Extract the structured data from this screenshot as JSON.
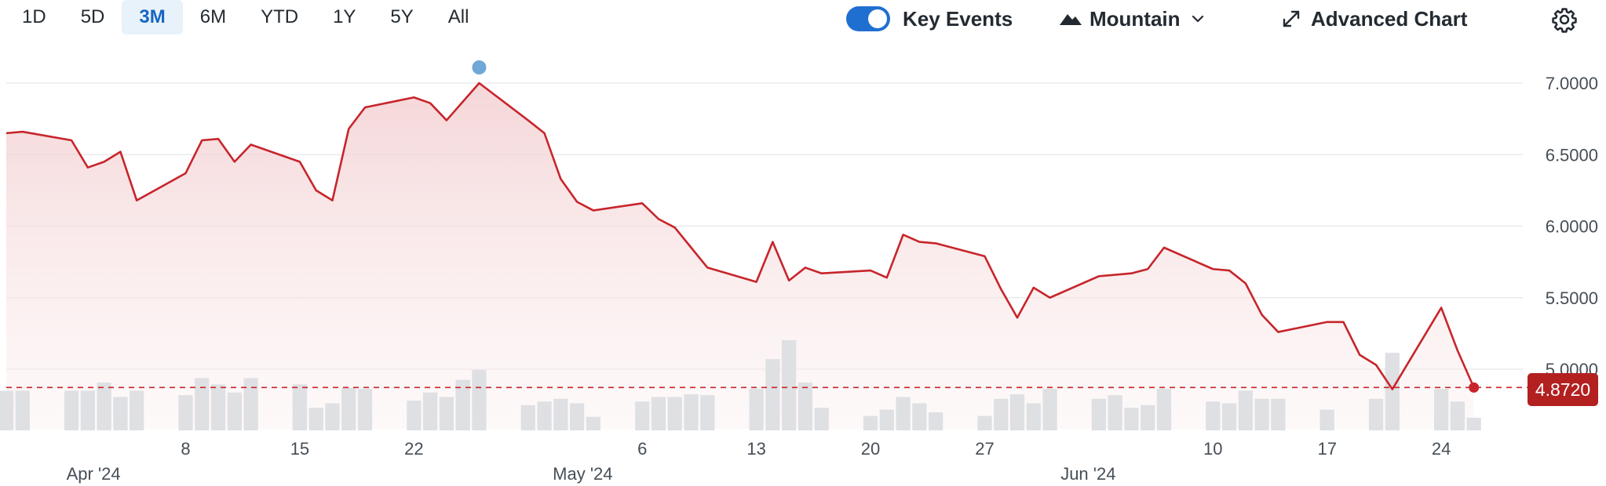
{
  "toolbar": {
    "ranges": [
      {
        "label": "1D",
        "active": false
      },
      {
        "label": "5D",
        "active": false
      },
      {
        "label": "3M",
        "active": true
      },
      {
        "label": "6M",
        "active": false
      },
      {
        "label": "YTD",
        "active": false
      },
      {
        "label": "1Y",
        "active": false
      },
      {
        "label": "5Y",
        "active": false
      },
      {
        "label": "All",
        "active": false
      }
    ],
    "key_events_label": "Key Events",
    "key_events_on": true,
    "chart_type_label": "Mountain",
    "advanced_chart_label": "Advanced Chart",
    "icons": {
      "chart_type": "mountain-icon",
      "dropdown": "chevron-down-icon",
      "advanced": "expand-arrows-icon",
      "settings": "gear-icon"
    }
  },
  "current_price_label": "4.8720",
  "colors": {
    "line": "#c7252b",
    "fill": "#f5d9da",
    "volume": "#dfe0e3",
    "event_dot": "#6ea7d8",
    "price_tag": "#b22020",
    "active_tab_bg": "#e8f2fb",
    "active_tab_text": "#1766c2",
    "toggle": "#1f6fd1"
  },
  "chart_data": {
    "type": "area",
    "title": "",
    "xlabel": "",
    "ylabel": "",
    "ylim": [
      4.6,
      7.2
    ],
    "yticks": [
      5.0,
      5.5,
      6.0,
      6.5,
      7.0
    ],
    "ytick_labels": [
      "5.0000",
      "5.5000",
      "6.0000",
      "6.5000",
      "7.0000"
    ],
    "grid": true,
    "x_tick_labels": [
      {
        "date": "2024-04-08",
        "label": "8"
      },
      {
        "date": "2024-04-15",
        "label": "15"
      },
      {
        "date": "2024-04-22",
        "label": "22"
      },
      {
        "date": "2024-05-06",
        "label": "6"
      },
      {
        "date": "2024-05-13",
        "label": "13"
      },
      {
        "date": "2024-05-20",
        "label": "20"
      },
      {
        "date": "2024-05-27",
        "label": "27"
      },
      {
        "date": "2024-06-10",
        "label": "10"
      },
      {
        "date": "2024-06-17",
        "label": "17"
      },
      {
        "date": "2024-06-24",
        "label": "24"
      }
    ],
    "month_labels": [
      {
        "date": "2024-04-01",
        "label": "Apr '24"
      },
      {
        "date": "2024-05-01",
        "label": "May '24"
      },
      {
        "date": "2024-06-01",
        "label": "Jun '24"
      }
    ],
    "x_range": [
      "2024-03-28",
      "2024-06-29"
    ],
    "last_value": 4.872,
    "key_event_date": "2024-04-26",
    "price": [
      [
        "2024-03-28",
        6.65
      ],
      [
        "2024-03-29",
        6.66
      ],
      [
        "2024-04-01",
        6.6
      ],
      [
        "2024-04-02",
        6.41
      ],
      [
        "2024-04-03",
        6.45
      ],
      [
        "2024-04-04",
        6.52
      ],
      [
        "2024-04-05",
        6.18
      ],
      [
        "2024-04-08",
        6.37
      ],
      [
        "2024-04-09",
        6.6
      ],
      [
        "2024-04-10",
        6.61
      ],
      [
        "2024-04-11",
        6.45
      ],
      [
        "2024-04-12",
        6.57
      ],
      [
        "2024-04-15",
        6.45
      ],
      [
        "2024-04-16",
        6.25
      ],
      [
        "2024-04-17",
        6.18
      ],
      [
        "2024-04-18",
        6.68
      ],
      [
        "2024-04-19",
        6.83
      ],
      [
        "2024-04-22",
        6.9
      ],
      [
        "2024-04-23",
        6.86
      ],
      [
        "2024-04-24",
        6.74
      ],
      [
        "2024-04-26",
        7.0
      ],
      [
        "2024-04-29",
        6.74
      ],
      [
        "2024-04-30",
        6.65
      ],
      [
        "2024-05-01",
        6.33
      ],
      [
        "2024-05-02",
        6.17
      ],
      [
        "2024-05-03",
        6.11
      ],
      [
        "2024-05-06",
        6.16
      ],
      [
        "2024-05-07",
        6.05
      ],
      [
        "2024-05-08",
        5.99
      ],
      [
        "2024-05-09",
        5.85
      ],
      [
        "2024-05-10",
        5.71
      ],
      [
        "2024-05-13",
        5.61
      ],
      [
        "2024-05-14",
        5.89
      ],
      [
        "2024-05-15",
        5.62
      ],
      [
        "2024-05-16",
        5.71
      ],
      [
        "2024-05-17",
        5.67
      ],
      [
        "2024-05-20",
        5.69
      ],
      [
        "2024-05-21",
        5.64
      ],
      [
        "2024-05-22",
        5.94
      ],
      [
        "2024-05-23",
        5.89
      ],
      [
        "2024-05-24",
        5.88
      ],
      [
        "2024-05-27",
        5.79
      ],
      [
        "2024-05-28",
        5.56
      ],
      [
        "2024-05-29",
        5.36
      ],
      [
        "2024-05-30",
        5.57
      ],
      [
        "2024-05-31",
        5.5
      ],
      [
        "2024-06-03",
        5.65
      ],
      [
        "2024-06-04",
        5.66
      ],
      [
        "2024-06-05",
        5.67
      ],
      [
        "2024-06-06",
        5.7
      ],
      [
        "2024-06-07",
        5.85
      ],
      [
        "2024-06-10",
        5.7
      ],
      [
        "2024-06-11",
        5.69
      ],
      [
        "2024-06-12",
        5.6
      ],
      [
        "2024-06-13",
        5.38
      ],
      [
        "2024-06-14",
        5.26
      ],
      [
        "2024-06-17",
        5.33
      ],
      [
        "2024-06-18",
        5.33
      ],
      [
        "2024-06-19",
        5.1
      ],
      [
        "2024-06-20",
        5.03
      ],
      [
        "2024-06-21",
        4.86
      ],
      [
        "2024-06-24",
        5.43
      ],
      [
        "2024-06-25",
        5.13
      ],
      [
        "2024-06-26",
        4.872
      ]
    ],
    "volume_relative": [
      [
        "2024-03-28",
        0.44
      ],
      [
        "2024-03-29",
        0.44
      ],
      [
        "2024-04-01",
        0.44
      ],
      [
        "2024-04-02",
        0.44
      ],
      [
        "2024-04-03",
        0.53
      ],
      [
        "2024-04-04",
        0.37
      ],
      [
        "2024-04-05",
        0.44
      ],
      [
        "2024-04-08",
        0.39
      ],
      [
        "2024-04-09",
        0.58
      ],
      [
        "2024-04-10",
        0.51
      ],
      [
        "2024-04-11",
        0.42
      ],
      [
        "2024-04-12",
        0.58
      ],
      [
        "2024-04-15",
        0.51
      ],
      [
        "2024-04-16",
        0.25
      ],
      [
        "2024-04-17",
        0.3
      ],
      [
        "2024-04-18",
        0.47
      ],
      [
        "2024-04-19",
        0.46
      ],
      [
        "2024-04-22",
        0.33
      ],
      [
        "2024-04-23",
        0.42
      ],
      [
        "2024-04-24",
        0.37
      ],
      [
        "2024-04-25",
        0.56
      ],
      [
        "2024-04-26",
        0.67
      ],
      [
        "2024-04-29",
        0.28
      ],
      [
        "2024-04-30",
        0.32
      ],
      [
        "2024-05-01",
        0.35
      ],
      [
        "2024-05-02",
        0.3
      ],
      [
        "2024-05-03",
        0.15
      ],
      [
        "2024-05-06",
        0.32
      ],
      [
        "2024-05-07",
        0.37
      ],
      [
        "2024-05-08",
        0.37
      ],
      [
        "2024-05-09",
        0.4
      ],
      [
        "2024-05-10",
        0.39
      ],
      [
        "2024-05-13",
        0.46
      ],
      [
        "2024-05-14",
        0.79
      ],
      [
        "2024-05-15",
        1.0
      ],
      [
        "2024-05-16",
        0.53
      ],
      [
        "2024-05-17",
        0.25
      ],
      [
        "2024-05-20",
        0.16
      ],
      [
        "2024-05-21",
        0.23
      ],
      [
        "2024-05-22",
        0.37
      ],
      [
        "2024-05-23",
        0.3
      ],
      [
        "2024-05-24",
        0.2
      ],
      [
        "2024-05-27",
        0.16
      ],
      [
        "2024-05-28",
        0.35
      ],
      [
        "2024-05-29",
        0.4
      ],
      [
        "2024-05-30",
        0.3
      ],
      [
        "2024-05-31",
        0.46
      ],
      [
        "2024-06-03",
        0.35
      ],
      [
        "2024-06-04",
        0.39
      ],
      [
        "2024-06-05",
        0.25
      ],
      [
        "2024-06-06",
        0.28
      ],
      [
        "2024-06-07",
        0.46
      ],
      [
        "2024-06-10",
        0.32
      ],
      [
        "2024-06-11",
        0.3
      ],
      [
        "2024-06-12",
        0.44
      ],
      [
        "2024-06-13",
        0.35
      ],
      [
        "2024-06-14",
        0.35
      ],
      [
        "2024-06-17",
        0.23
      ],
      [
        "2024-06-20",
        0.35
      ],
      [
        "2024-06-21",
        0.86
      ],
      [
        "2024-06-24",
        0.46
      ],
      [
        "2024-06-25",
        0.32
      ],
      [
        "2024-06-26",
        0.14
      ]
    ]
  }
}
